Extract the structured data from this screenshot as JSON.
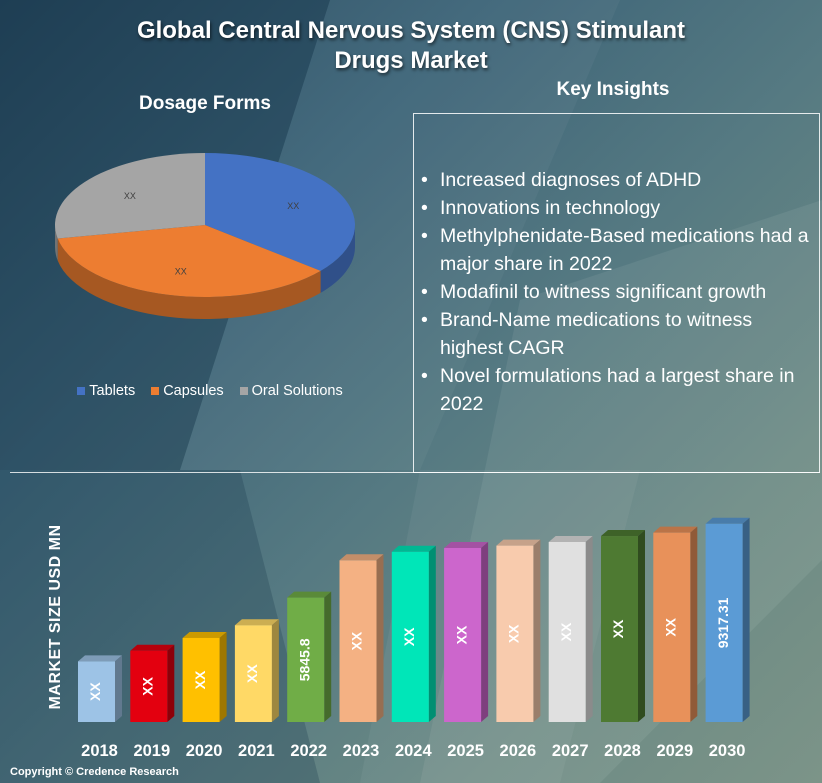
{
  "title_line1": "Global Central Nervous System (CNS) Stimulant",
  "title_line2": "Drugs Market",
  "dosage_title": "Dosage Forms",
  "insights_title": "Key Insights",
  "insights": [
    "Increased diagnoses of ADHD",
    "Innovations in technology",
    "Methylphenidate-Based medications had a major share in 2022",
    "Modafinil to witness significant growth",
    "Brand-Name medications to witness highest CAGR",
    "Novel formulations had a largest share in 2022"
  ],
  "copyright": "Copyright © Credence Research",
  "chart_data": [
    {
      "type": "pie",
      "title": "Dosage Forms",
      "categories": [
        "Tablets",
        "Capsules",
        "Oral Solutions"
      ],
      "values": [
        36,
        36,
        28
      ],
      "labels": [
        "XX",
        "XX",
        "XX"
      ],
      "colors": [
        "#4472c4",
        "#ed7d31",
        "#a5a5a5"
      ],
      "legend": "bottom"
    },
    {
      "type": "bar",
      "categories": [
        "2018",
        "2019",
        "2020",
        "2021",
        "2022",
        "2023",
        "2024",
        "2025",
        "2026",
        "2027",
        "2028",
        "2029",
        "2030"
      ],
      "values": [
        2850,
        3350,
        3950,
        4550,
        5845.8,
        7600,
        8000,
        8180,
        8290,
        8460,
        8740,
        8900,
        9317.31
      ],
      "labels": [
        "XX",
        "XX",
        "XX",
        "XX",
        "5845.8",
        "XX",
        "XX",
        "XX",
        "XX",
        "XX",
        "XX",
        "XX",
        "9317.31"
      ],
      "colors": [
        "#9dc3e6",
        "#e3000f",
        "#ffc000",
        "#ffd966",
        "#70ad47",
        "#f4b183",
        "#00e6b8",
        "#cc66cc",
        "#f8cbad",
        "#e0e0e0",
        "#4e7a32",
        "#e8915a",
        "#5b9bd5"
      ],
      "ylabel": "MARKET SIZE USD MN",
      "xlabel": "",
      "ylim": [
        0,
        10000
      ]
    }
  ]
}
